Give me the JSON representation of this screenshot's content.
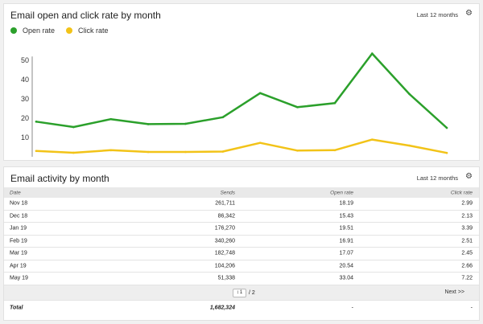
{
  "chart_panel": {
    "title": "Email open and click rate by month",
    "period": "Last 12 months",
    "settings_icon": "gear-icon",
    "legend": [
      {
        "label": "Open rate",
        "color": "#2ba02b"
      },
      {
        "label": "Click rate",
        "color": "#f2c318"
      }
    ]
  },
  "chart_data": {
    "type": "line",
    "x": [
      1,
      2,
      3,
      4,
      5,
      6,
      7,
      8,
      9,
      10,
      11,
      12
    ],
    "yticks": [
      10,
      20,
      30,
      40,
      50
    ],
    "ylim": [
      0,
      55
    ],
    "grid": false,
    "legend_position": "top-left",
    "series": [
      {
        "name": "Open rate",
        "color": "#2ba02b",
        "values": [
          18.2,
          15.4,
          19.5,
          16.9,
          17.1,
          20.5,
          33.0,
          25.7,
          27.8,
          53.5,
          32.5,
          15.0
        ]
      },
      {
        "name": "Click rate",
        "color": "#f2c318",
        "values": [
          3.0,
          2.1,
          3.4,
          2.5,
          2.5,
          2.7,
          7.2,
          3.2,
          3.4,
          8.9,
          5.8,
          2.0
        ]
      }
    ]
  },
  "table_panel": {
    "title": "Email activity by month",
    "period": "Last 12 months",
    "settings_icon": "gear-icon",
    "columns": {
      "date": "Date",
      "sends": "Sends",
      "open": "Open rate",
      "click": "Click rate"
    },
    "rows": [
      {
        "date": "Nov 18",
        "sends": "261,711",
        "open": "18.19",
        "click": "2.99"
      },
      {
        "date": "Dec 18",
        "sends": "86,342",
        "open": "15.43",
        "click": "2.13"
      },
      {
        "date": "Jan 19",
        "sends": "176,270",
        "open": "19.51",
        "click": "3.39"
      },
      {
        "date": "Feb 19",
        "sends": "340,260",
        "open": "16.91",
        "click": "2.51"
      },
      {
        "date": "Mar 19",
        "sends": "182,748",
        "open": "17.07",
        "click": "2.45"
      },
      {
        "date": "Apr 19",
        "sends": "104,206",
        "open": "20.54",
        "click": "2.66"
      },
      {
        "date": "May 19",
        "sends": "51,338",
        "open": "33.04",
        "click": "7.22"
      }
    ],
    "pager": {
      "current": "1",
      "total_label": "/ 2",
      "next_label": "Next >>"
    },
    "total": {
      "label": "Total",
      "sends": "1,682,324",
      "open": "-",
      "click": "-"
    }
  }
}
